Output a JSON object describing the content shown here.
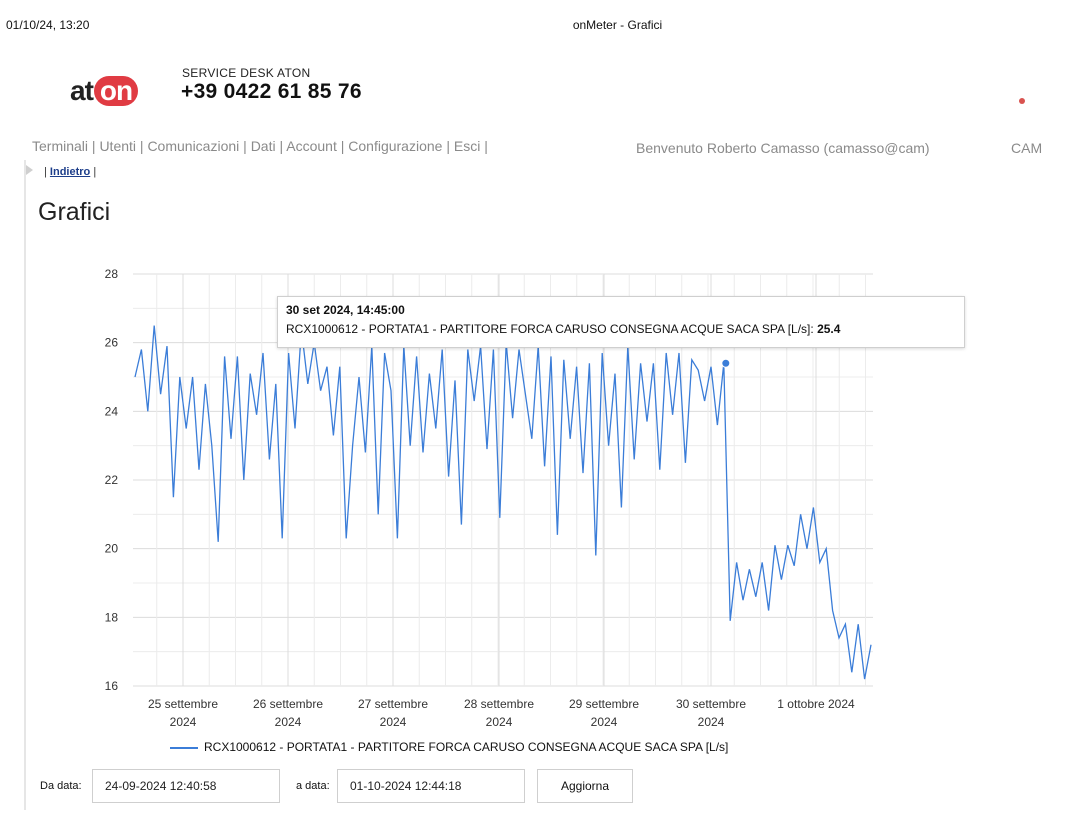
{
  "print_header": {
    "datetime": "01/10/24, 13:20",
    "page_title": "onMeter - Grafici"
  },
  "brand": {
    "logo_left": "at",
    "logo_right": "on",
    "desk_label": "SERVICE DESK ATON",
    "desk_phone": "+39 0422 61 85 76"
  },
  "nav": {
    "items": [
      "Terminali",
      "Utenti",
      "Comunicazioni",
      "Dati",
      "Account",
      "Configurazione",
      "Esci"
    ],
    "welcome": "Benvenuto Roberto Camasso (camasso@cam)",
    "right": "CAM"
  },
  "breadcrumb": {
    "back": "Indietro"
  },
  "page": {
    "title": "Grafici"
  },
  "tooltip": {
    "title": "30 set 2024, 14:45:00",
    "series": "RCX1000612 - PORTATA1 - PARTITORE FORCA CARUSO CONSEGNA ACQUE SACA SPA [L/s]",
    "value": "25.4"
  },
  "chart_data": {
    "type": "line",
    "title": "",
    "xlabel": "",
    "ylabel": "",
    "ylim": [
      16,
      28
    ],
    "y_ticks": [
      16,
      18,
      20,
      22,
      24,
      26,
      28
    ],
    "x_range_days": [
      "24-09-2024 12:40",
      "01-10-2024 12:44"
    ],
    "x_ticks": [
      {
        "day": "25 settembre",
        "year": "2024"
      },
      {
        "day": "26 settembre",
        "year": "2024"
      },
      {
        "day": "27 settembre",
        "year": "2024"
      },
      {
        "day": "28 settembre",
        "year": "2024"
      },
      {
        "day": "29 settembre",
        "year": "2024"
      },
      {
        "day": "30 settembre",
        "year": "2024"
      },
      {
        "day": "1 ottobre 2024",
        "year": ""
      }
    ],
    "grid": true,
    "color": "#3b7dd8",
    "series": [
      {
        "name": "RCX1000612 - PORTATA1 - PARTITORE FORCA CARUSO CONSEGNA ACQUE SACA SPA [L/s]",
        "values": [
          25.0,
          25.8,
          24.0,
          26.5,
          24.5,
          25.9,
          21.5,
          25.0,
          23.5,
          25.0,
          22.3,
          24.8,
          23.0,
          20.2,
          25.6,
          23.2,
          25.6,
          22.0,
          25.1,
          23.9,
          25.7,
          22.6,
          24.8,
          20.3,
          25.7,
          23.5,
          26.4,
          24.8,
          26.0,
          24.6,
          25.3,
          23.3,
          25.3,
          20.3,
          23.0,
          25.0,
          22.8,
          25.9,
          21.0,
          25.7,
          24.6,
          20.3,
          25.9,
          23.0,
          25.6,
          22.8,
          25.1,
          23.5,
          25.8,
          22.1,
          24.9,
          20.7,
          25.8,
          24.3,
          25.9,
          22.9,
          25.8,
          20.9,
          26.0,
          23.8,
          25.8,
          24.5,
          23.2,
          25.9,
          22.4,
          25.6,
          20.4,
          25.5,
          23.2,
          25.3,
          22.2,
          25.4,
          19.8,
          25.7,
          23.0,
          25.1,
          21.2,
          25.9,
          22.6,
          25.4,
          23.7,
          25.4,
          22.3,
          25.7,
          23.9,
          25.7,
          22.5,
          25.5,
          25.2,
          24.3,
          25.3,
          23.6,
          25.4,
          17.9,
          19.6,
          18.5,
          19.4,
          18.6,
          19.6,
          18.2,
          20.1,
          19.1,
          20.1,
          19.5,
          21.0,
          20.0,
          21.2,
          19.6,
          20.0,
          18.2,
          17.4,
          17.8,
          16.4,
          17.8,
          16.2,
          17.2
        ]
      }
    ],
    "highlight": {
      "x": "30 set 2024, 14:45:00",
      "y": 25.4
    }
  },
  "filters": {
    "from_label": "Da data:",
    "from_value": "24-09-2024 12:40:58",
    "to_label": "a data:",
    "to_value": "01-10-2024 12:44:18",
    "button": "Aggiorna"
  }
}
